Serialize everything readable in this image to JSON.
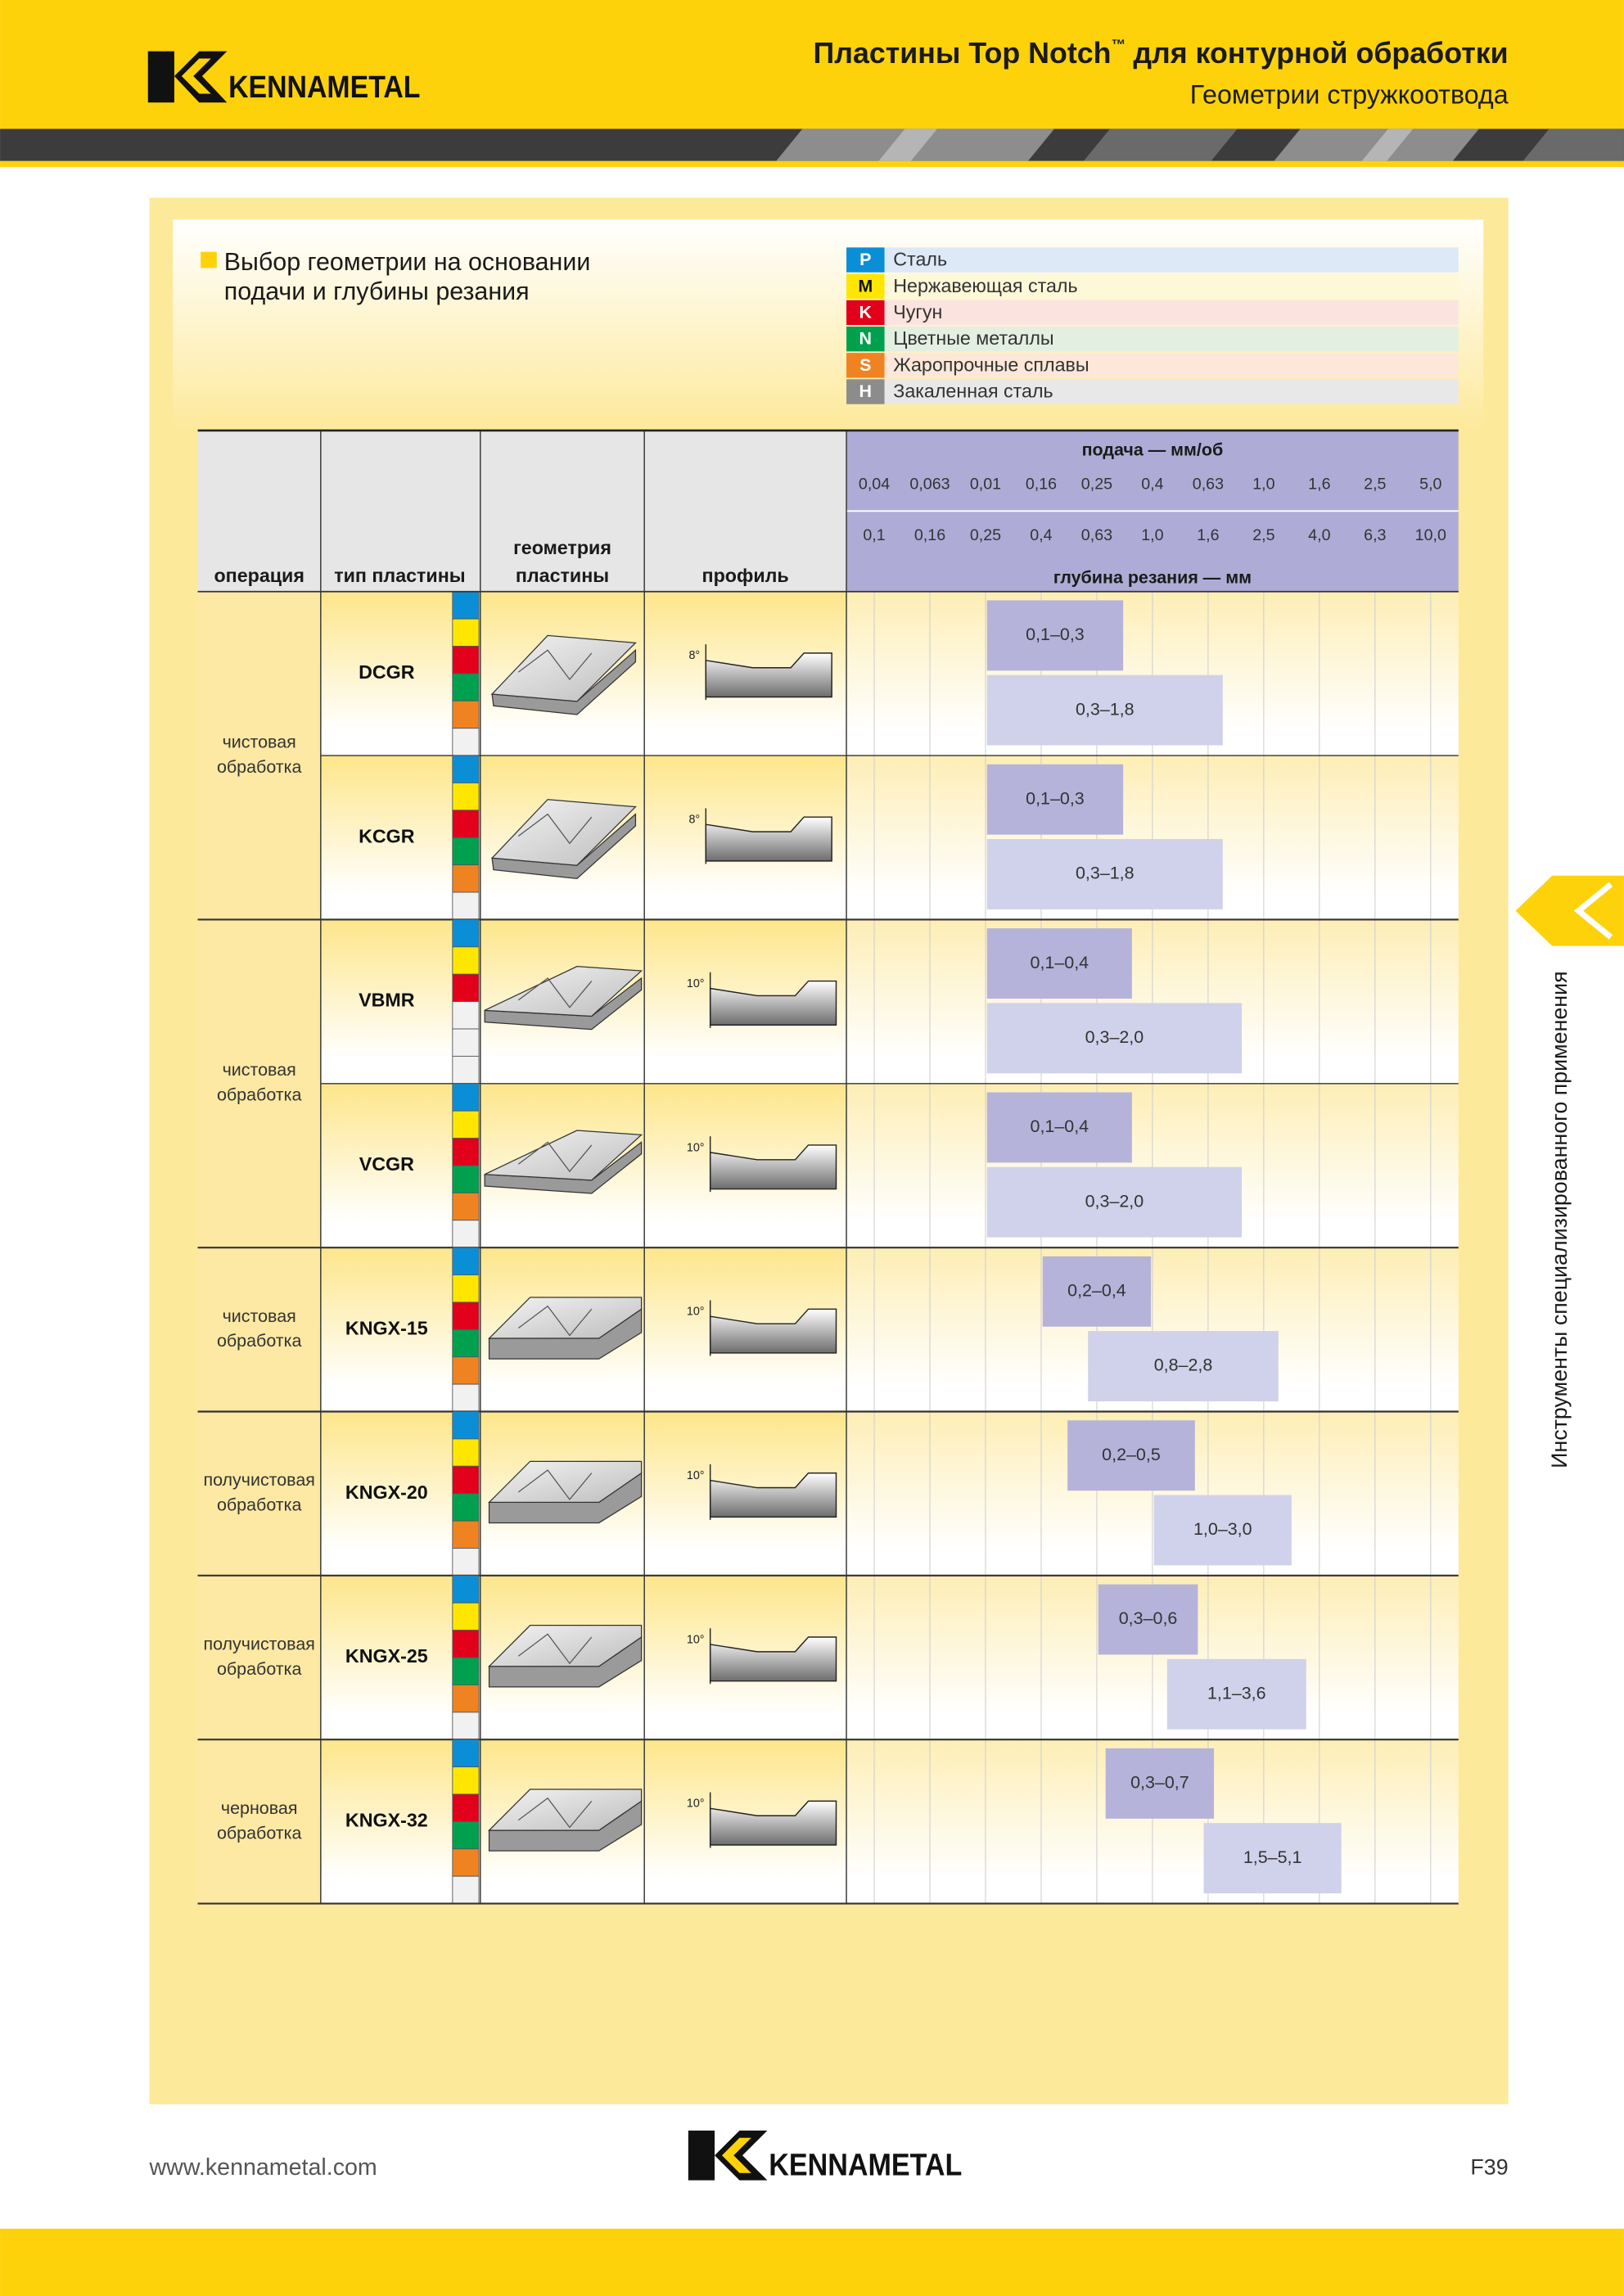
{
  "header": {
    "brand": "KENNAMETAL",
    "title_main": "Пластины Top Notch",
    "trademark": "™",
    "title_end": "для контурной обработки",
    "subtitle": "Геометрии стружкоотвода"
  },
  "section": {
    "heading": [
      "Выбор геометрии на основании",
      "подачи и глубины резания"
    ]
  },
  "legend": [
    {
      "code": "P",
      "name": "Сталь",
      "color": "#0a8fd6",
      "tint": "#dde9f7"
    },
    {
      "code": "M",
      "name": "Нержавеющая сталь",
      "color": "#ffe600",
      "tint": "#fdf8d8"
    },
    {
      "code": "K",
      "name": "Чугун",
      "color": "#e2001a",
      "tint": "#fbe4df"
    },
    {
      "code": "N",
      "name": "Цветные металлы",
      "color": "#00a04f",
      "tint": "#e3efe1"
    },
    {
      "code": "S",
      "name": "Жаропрочные сплавы",
      "color": "#f08321",
      "tint": "#fce7d9"
    },
    {
      "code": "H",
      "name": "Закаленная сталь",
      "color": "#8c8c8c",
      "tint": "#e8e8e8"
    }
  ],
  "table": {
    "headers": {
      "operation": "операция",
      "type": "тип пластины",
      "geometry": [
        "геометрия",
        "пластины"
      ],
      "profile": "профиль",
      "feed": "подача — мм/об",
      "depth": "глубина резания — мм"
    },
    "feed_ticks": [
      "0,04",
      "0,063",
      "0,01",
      "0,16",
      "0,25",
      "0,4",
      "0,63",
      "1,0",
      "1,6",
      "2,5",
      "5,0"
    ],
    "depth_ticks": [
      "0,1",
      "0,16",
      "0,25",
      "0,4",
      "0,63",
      "1,0",
      "1,6",
      "2,5",
      "4,0",
      "6,3",
      "10,0"
    ],
    "groups": [
      {
        "operation": [
          "чистовая",
          "обработка"
        ],
        "inserts": [
          {
            "type": "DCGR",
            "angle": "8°",
            "feed": "0,1–0,3",
            "depth": "0,3–1,8",
            "materials": [
              "P",
              "M",
              "K",
              "N",
              "S"
            ]
          },
          {
            "type": "KCGR",
            "angle": "8°",
            "feed": "0,1–0,3",
            "depth": "0,3–1,8",
            "materials": [
              "P",
              "M",
              "K",
              "N",
              "S"
            ]
          }
        ]
      },
      {
        "operation": [
          "чистовая",
          "обработка"
        ],
        "inserts": [
          {
            "type": "VBMR",
            "angle": "10°",
            "feed": "0,1–0,4",
            "depth": "0,3–2,0",
            "materials": [
              "P",
              "M",
              "K"
            ]
          },
          {
            "type": "VCGR",
            "angle": "10°",
            "feed": "0,1–0,4",
            "depth": "0,3–2,0",
            "materials": [
              "P",
              "M",
              "K",
              "N",
              "S"
            ]
          }
        ]
      },
      {
        "operation": [
          "чистовая",
          "обработка"
        ],
        "inserts": [
          {
            "type": "KNGX-15",
            "angle": "10°",
            "feed": "0,2–0,4",
            "depth": "0,8–2,8",
            "materials": [
              "P",
              "M",
              "K",
              "N",
              "S"
            ]
          }
        ]
      },
      {
        "operation": [
          "получистовая",
          "обработка"
        ],
        "inserts": [
          {
            "type": "KNGX-20",
            "angle": "10°",
            "feed": "0,2–0,5",
            "depth": "1,0–3,0",
            "materials": [
              "P",
              "M",
              "K",
              "N",
              "S"
            ]
          }
        ]
      },
      {
        "operation": [
          "получистовая",
          "обработка"
        ],
        "inserts": [
          {
            "type": "KNGX-25",
            "angle": "10°",
            "feed": "0,3–0,6",
            "depth": "1,1–3,6",
            "materials": [
              "P",
              "M",
              "K",
              "N",
              "S"
            ]
          }
        ]
      },
      {
        "operation": [
          "черновая",
          "обработка"
        ],
        "inserts": [
          {
            "type": "KNGX-32",
            "angle": "10°",
            "feed": "0,3–0,7",
            "depth": "1,5–5,1",
            "materials": [
              "P",
              "M",
              "K",
              "N",
              "S"
            ]
          }
        ]
      }
    ]
  },
  "sidebar": "Инструменты специализированного применения",
  "footer": {
    "url": "www.kennametal.com",
    "page": "F39"
  }
}
